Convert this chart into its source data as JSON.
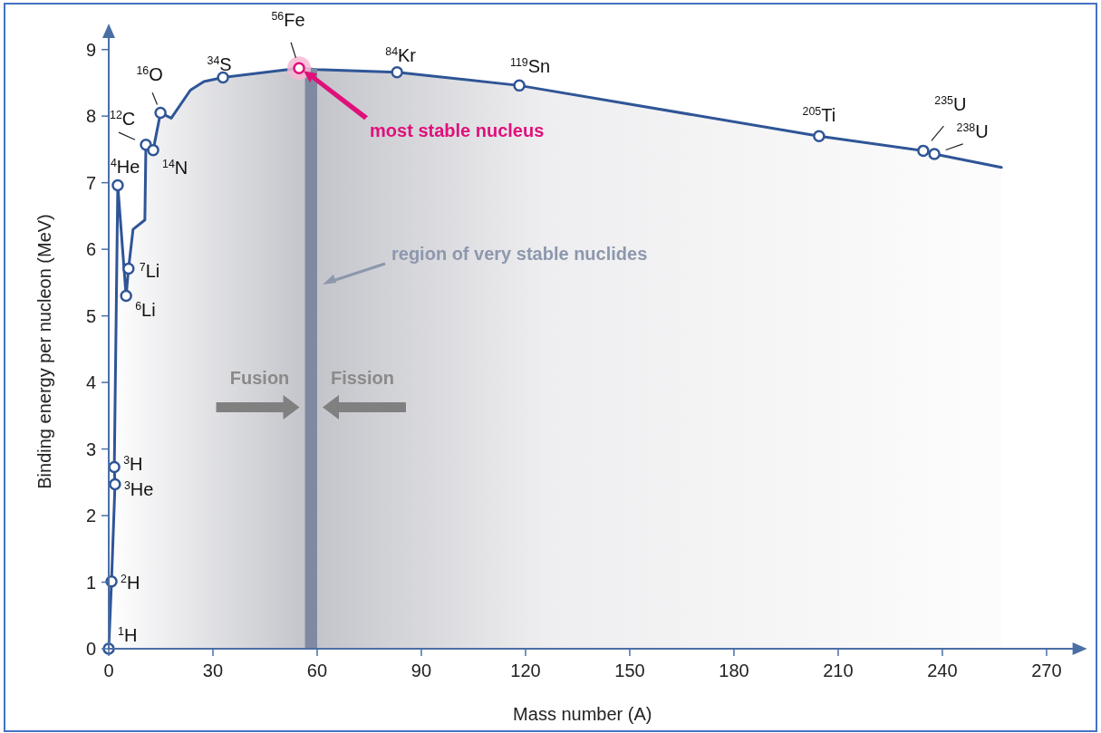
{
  "chart_data": {
    "type": "line",
    "xlabel": "Mass number (A)",
    "ylabel": "Binding energy per nucleon (MeV)",
    "xlim": [
      0,
      278
    ],
    "ylim": [
      0,
      9.2
    ],
    "xticks": [
      0,
      30,
      60,
      90,
      120,
      150,
      180,
      210,
      240,
      270
    ],
    "yticks": [
      0,
      1,
      2,
      3,
      4,
      5,
      6,
      7,
      8,
      9
    ],
    "grid": false,
    "series": [
      {
        "color": "#2f5597",
        "marker": "none",
        "x": [
          0,
          0.8,
          1.8,
          1.6,
          2.6,
          5.0,
          5.7,
          7.0,
          10.4,
          10.7,
          12.8,
          14.9,
          18.0,
          23.5,
          27.4,
          32.9,
          54.8,
          60,
          83.0,
          118.2,
          204.5,
          234.5,
          237.7,
          257
        ],
        "values": [
          0,
          1.01,
          2.47,
          2.73,
          6.96,
          5.3,
          5.71,
          6.3,
          6.44,
          7.57,
          7.49,
          8.05,
          7.97,
          8.39,
          8.52,
          8.58,
          8.72,
          8.7,
          8.66,
          8.46,
          7.7,
          7.48,
          7.43,
          7.23
        ]
      },
      {
        "type": "scatter",
        "color": "#2f5597",
        "marker": "circle",
        "x": [
          0,
          0.8,
          1.8,
          1.6,
          2.6,
          5.0,
          5.7,
          10.7,
          12.8,
          14.9,
          32.9,
          83.0,
          118.2,
          204.5,
          234.5,
          237.7
        ],
        "values": [
          0,
          1.01,
          2.47,
          2.73,
          6.96,
          5.3,
          5.71,
          7.57,
          7.49,
          8.05,
          8.58,
          8.66,
          8.46,
          7.7,
          7.48,
          7.43
        ]
      },
      {
        "type": "scatter",
        "color": "#e0107a",
        "marker": "circle",
        "x": [
          54.8
        ],
        "values": [
          8.72
        ]
      }
    ],
    "bands": [
      {
        "axis": "x",
        "from": 56.5,
        "to": 60,
        "label": "region of very stable nuclides",
        "color": "#7f89a1"
      }
    ],
    "annotations": [
      {
        "text": "$^{1}$H",
        "x": 0,
        "y": 0
      },
      {
        "text": "$^{2}$H",
        "x": 0.8,
        "y": 1.01
      },
      {
        "text": "$^{3}$He",
        "x": 1.8,
        "y": 2.47
      },
      {
        "text": "$^{3}$H",
        "x": 1.6,
        "y": 2.73
      },
      {
        "text": "$^{4}$He",
        "x": 2.6,
        "y": 6.96
      },
      {
        "text": "$^{6}$Li",
        "x": 5.0,
        "y": 5.3
      },
      {
        "text": "$^{7}$Li",
        "x": 5.7,
        "y": 5.71
      },
      {
        "text": "$^{12}$C",
        "x": 10.7,
        "y": 7.57
      },
      {
        "text": "$^{14}$N",
        "x": 12.8,
        "y": 7.49
      },
      {
        "text": "$^{16}$O",
        "x": 14.9,
        "y": 8.05
      },
      {
        "text": "$^{34}$S",
        "x": 32.9,
        "y": 8.58
      },
      {
        "text": "$^{56}$Fe",
        "x": 54.8,
        "y": 8.72
      },
      {
        "text": "$^{84}$Kr",
        "x": 83.0,
        "y": 8.66
      },
      {
        "text": "$^{119}$Sn",
        "x": 118.2,
        "y": 8.46
      },
      {
        "text": "$^{205}$Ti",
        "x": 204.5,
        "y": 7.7
      },
      {
        "text": "$^{235}$U",
        "x": 234.5,
        "y": 7.48
      },
      {
        "text": "$^{238}$U",
        "x": 237.7,
        "y": 7.43
      },
      "most stable nucleus",
      "Fusion",
      "Fission"
    ]
  }
}
